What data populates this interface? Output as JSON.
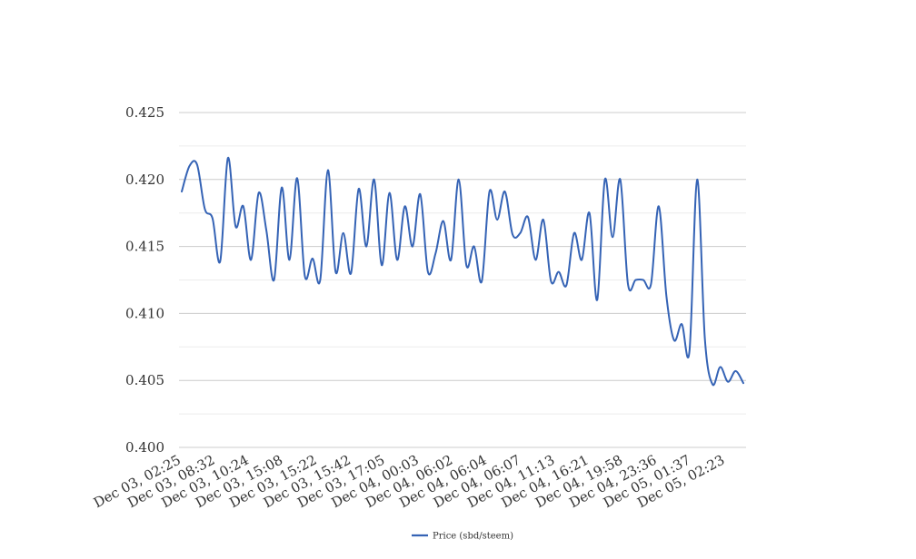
{
  "chart_data": {
    "type": "line",
    "title": "",
    "xlabel": "",
    "ylabel": "",
    "ylim": [
      0.4,
      0.425
    ],
    "yticks": [
      "0.400",
      "0.405",
      "0.410",
      "0.415",
      "0.420",
      "0.425"
    ],
    "grid": "horizontal",
    "legend_position": "bottom",
    "colors": {
      "series": "#3563b5",
      "grid": "#cccccc"
    },
    "x_tick_labels": [
      "Dec 03, 02:25",
      "Dec 03, 08:32",
      "Dec 03, 10:24",
      "Dec 03, 15:08",
      "Dec 03, 15:22",
      "Dec 03, 15:42",
      "Dec 03, 17:05",
      "Dec 04, 00:03",
      "Dec 04, 06:02",
      "Dec 04, 06:04",
      "Dec 04, 06:07",
      "Dec 04, 11:13",
      "Dec 04, 16:21",
      "Dec 04, 19:58",
      "Dec 04, 23:36",
      "Dec 05, 01:37",
      "Dec 05, 02:23"
    ],
    "series": [
      {
        "name": "Price (sbd/steem)",
        "values": [
          0.4191,
          0.421,
          0.4211,
          0.4178,
          0.4171,
          0.4139,
          0.4216,
          0.4165,
          0.418,
          0.414,
          0.419,
          0.4162,
          0.4125,
          0.4194,
          0.414,
          0.4201,
          0.4128,
          0.4141,
          0.4125,
          0.4207,
          0.4131,
          0.416,
          0.413,
          0.4193,
          0.415,
          0.42,
          0.4136,
          0.419,
          0.414,
          0.418,
          0.415,
          0.4189,
          0.4131,
          0.4145,
          0.4169,
          0.414,
          0.42,
          0.4136,
          0.415,
          0.4124,
          0.4191,
          0.417,
          0.4191,
          0.4159,
          0.416,
          0.4172,
          0.414,
          0.417,
          0.4124,
          0.4131,
          0.4121,
          0.416,
          0.414,
          0.4175,
          0.411,
          0.42,
          0.4157,
          0.42,
          0.4122,
          0.4125,
          0.4125,
          0.4122,
          0.418,
          0.4113,
          0.408,
          0.4092,
          0.4072,
          0.42,
          0.4081,
          0.4047,
          0.406,
          0.4049,
          0.4057,
          0.4048
        ]
      }
    ]
  }
}
